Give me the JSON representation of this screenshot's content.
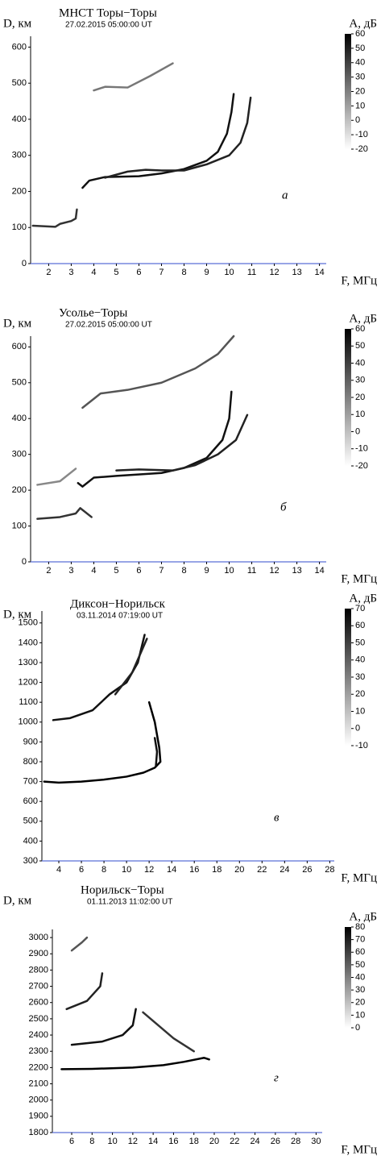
{
  "chart_data": [
    {
      "type": "line",
      "title": "МНСТ Торы−Торы",
      "subtitle": "27.02.2015   05:00:00 UT",
      "panel_label": "а",
      "x_label": "F, МГц",
      "y_label": "D, км",
      "colorbar_label": "A, дБ",
      "xlim": [
        1.2,
        14.3
      ],
      "xticks": [
        2,
        3,
        4,
        5,
        6,
        7,
        8,
        9,
        10,
        11,
        12,
        13,
        14
      ],
      "ylim": [
        0,
        630
      ],
      "yticks": [
        0,
        100,
        200,
        300,
        400,
        500,
        600
      ],
      "clim": [
        -20,
        60
      ],
      "cticks": [
        60,
        50,
        40,
        30,
        20,
        10,
        0,
        -10,
        -20
      ],
      "series": [
        {
          "color": "#111",
          "x": [
            3.5,
            3.8,
            4.5,
            6,
            7,
            8,
            9,
            9.5,
            9.9,
            10.1,
            10.2
          ],
          "values": [
            210,
            230,
            240,
            242,
            250,
            262,
            285,
            310,
            360,
            420,
            470
          ]
        },
        {
          "color": "#222",
          "x": [
            4.5,
            5.5,
            6.3,
            7,
            8,
            9,
            10,
            10.5,
            10.8,
            10.95
          ],
          "values": [
            238,
            255,
            260,
            258,
            258,
            275,
            300,
            335,
            390,
            460
          ]
        },
        {
          "color": "#333",
          "x": [
            1.3,
            2.3,
            2.5,
            3,
            3.2,
            3.25
          ],
          "values": [
            105,
            102,
            110,
            118,
            125,
            150
          ]
        },
        {
          "color": "#777",
          "x": [
            4,
            4.5,
            5.5,
            6.5,
            7.5
          ],
          "values": [
            480,
            490,
            488,
            520,
            555
          ]
        }
      ]
    },
    {
      "type": "line",
      "title": "Усолье−Торы",
      "subtitle": "27.02.2015   05:00:00 UT",
      "panel_label": "б",
      "x_label": "F, МГц",
      "y_label": "D, км",
      "colorbar_label": "A, дБ",
      "xlim": [
        1.2,
        14.3
      ],
      "xticks": [
        2,
        3,
        4,
        5,
        6,
        7,
        8,
        9,
        10,
        11,
        12,
        13,
        14
      ],
      "ylim": [
        0,
        630
      ],
      "yticks": [
        0,
        100,
        200,
        300,
        400,
        500,
        600
      ],
      "clim": [
        -20,
        60
      ],
      "cticks": [
        60,
        50,
        40,
        30,
        20,
        10,
        0,
        -10,
        -20
      ],
      "series": [
        {
          "color": "#111",
          "x": [
            3.3,
            3.5,
            4,
            5,
            7,
            8,
            9,
            9.7,
            10,
            10.1
          ],
          "values": [
            220,
            210,
            235,
            240,
            248,
            262,
            290,
            340,
            400,
            475
          ]
        },
        {
          "color": "#222",
          "x": [
            5,
            6,
            7.5,
            8.5,
            9.5,
            10.3,
            10.8
          ],
          "values": [
            255,
            258,
            255,
            270,
            300,
            340,
            410
          ]
        },
        {
          "color": "#333",
          "x": [
            1.5,
            2.5,
            3.2,
            3.4,
            3.9
          ],
          "values": [
            120,
            125,
            135,
            150,
            125
          ]
        },
        {
          "color": "#555",
          "x": [
            3.5,
            4.3,
            5.5,
            7,
            8.5,
            9.5,
            10.2
          ],
          "values": [
            430,
            470,
            480,
            500,
            540,
            580,
            630
          ]
        },
        {
          "color": "#888",
          "x": [
            1.5,
            2.5,
            3.2
          ],
          "values": [
            215,
            225,
            260
          ]
        }
      ]
    },
    {
      "type": "line",
      "title": "Диксон−Норильск",
      "subtitle": "03.11.2014   07:19:00 UT",
      "panel_label": "в",
      "x_label": "F, МГц",
      "y_label": "D, км",
      "colorbar_label": "A, дБ",
      "xlim": [
        2.5,
        28.4
      ],
      "xticks": [
        4,
        6,
        8,
        10,
        12,
        14,
        16,
        18,
        20,
        22,
        24,
        26,
        28
      ],
      "ylim": [
        300,
        1560
      ],
      "yticks": [
        300,
        400,
        500,
        600,
        700,
        800,
        900,
        1000,
        1100,
        1200,
        1300,
        1400,
        1500
      ],
      "clim": [
        -10,
        70
      ],
      "cticks": [
        70,
        60,
        50,
        40,
        30,
        20,
        10,
        0,
        -10
      ],
      "series": [
        {
          "color": "#000",
          "x": [
            2.7,
            4,
            6,
            8,
            10,
            11.5,
            12.5,
            13,
            12.9,
            12.5,
            12
          ],
          "values": [
            700,
            695,
            700,
            710,
            725,
            745,
            770,
            800,
            870,
            1000,
            1100
          ]
        },
        {
          "color": "#111",
          "x": [
            12.6,
            12.7,
            12.5
          ],
          "values": [
            780,
            850,
            920
          ]
        },
        {
          "color": "#111",
          "x": [
            3.5,
            5,
            7,
            8.5,
            10,
            11,
            11.6
          ],
          "values": [
            1010,
            1020,
            1060,
            1140,
            1200,
            1300,
            1440
          ]
        },
        {
          "color": "#222",
          "x": [
            9,
            10.5,
            11.8
          ],
          "values": [
            1140,
            1250,
            1420
          ]
        }
      ]
    },
    {
      "type": "line",
      "title": "Норильск−Торы",
      "subtitle": "01.11.2013   11:02:00 UT",
      "panel_label": "г",
      "x_label": "F, МГц",
      "y_label": "D, км",
      "colorbar_label": "A, дБ",
      "xlim": [
        4.1,
        30.6
      ],
      "xticks": [
        6,
        8,
        10,
        12,
        14,
        16,
        18,
        20,
        22,
        24,
        26,
        28,
        30
      ],
      "ylim": [
        1800,
        3050
      ],
      "yticks": [
        1800,
        1900,
        2000,
        2100,
        2200,
        2300,
        2400,
        2500,
        2600,
        2700,
        2800,
        2900,
        3000
      ],
      "clim": [
        0,
        80
      ],
      "cticks": [
        80,
        70,
        60,
        50,
        40,
        30,
        20,
        10,
        0
      ],
      "series": [
        {
          "color": "#000",
          "x": [
            5,
            8,
            12,
            15,
            17,
            19,
            19.5
          ],
          "values": [
            2190,
            2192,
            2200,
            2215,
            2235,
            2260,
            2250
          ]
        },
        {
          "color": "#333",
          "x": [
            18,
            16,
            14.5,
            13
          ],
          "values": [
            2300,
            2380,
            2460,
            2540
          ]
        },
        {
          "color": "#111",
          "x": [
            6,
            9,
            11,
            12,
            12.3
          ],
          "values": [
            2340,
            2360,
            2400,
            2460,
            2560
          ]
        },
        {
          "color": "#222",
          "x": [
            5.5,
            7.5,
            8.8,
            9
          ],
          "values": [
            2560,
            2610,
            2700,
            2780
          ]
        },
        {
          "color": "#555",
          "x": [
            6,
            7,
            7.5
          ],
          "values": [
            2920,
            2970,
            3000
          ]
        }
      ]
    }
  ]
}
